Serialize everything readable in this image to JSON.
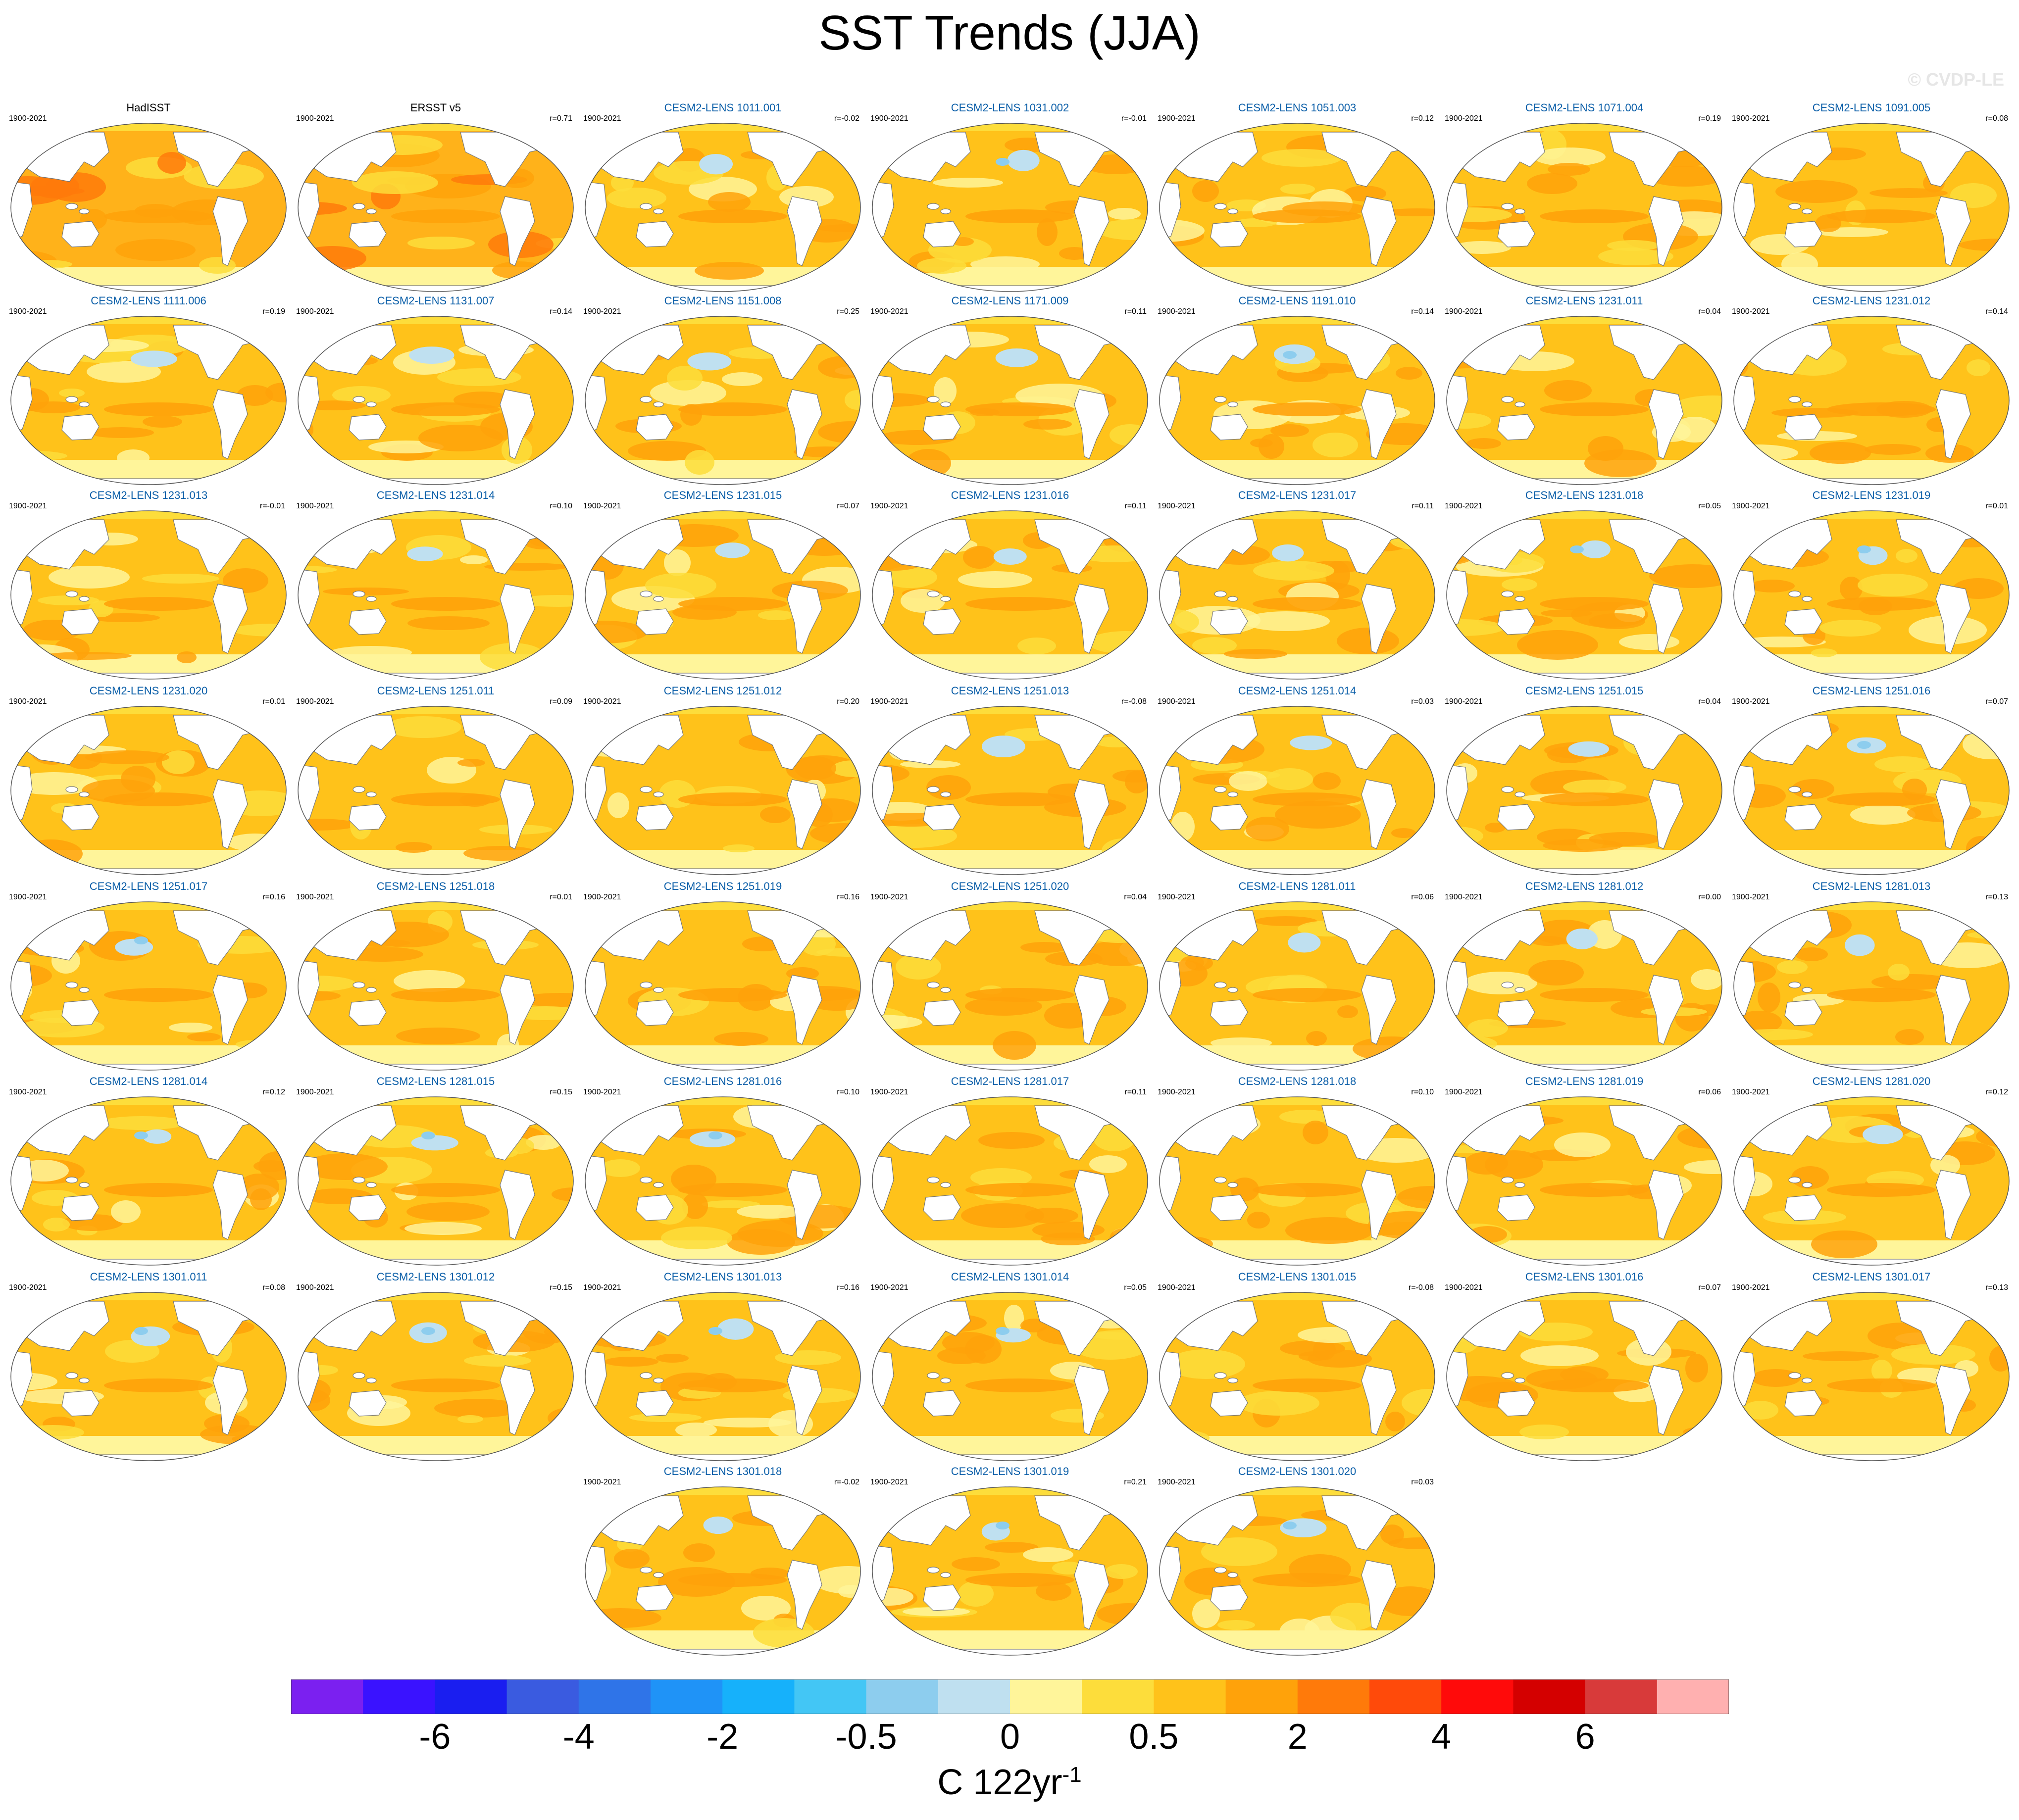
{
  "title": "SST Trends (JJA)",
  "watermark": "© CVDP-LE",
  "period": "1900-2021",
  "panels": [
    {
      "name": "HadISST",
      "r": "",
      "obs": true
    },
    {
      "name": "ERSST v5",
      "r": "r=0.71",
      "obs": true
    },
    {
      "name": "CESM2-LENS 1011.001",
      "r": "r=-0.02"
    },
    {
      "name": "CESM2-LENS 1031.002",
      "r": "r=-0.01"
    },
    {
      "name": "CESM2-LENS 1051.003",
      "r": "r=0.12"
    },
    {
      "name": "CESM2-LENS 1071.004",
      "r": "r=0.19"
    },
    {
      "name": "CESM2-LENS 1091.005",
      "r": "r=0.08"
    },
    {
      "name": "CESM2-LENS 1111.006",
      "r": "r=0.19"
    },
    {
      "name": "CESM2-LENS 1131.007",
      "r": "r=0.14"
    },
    {
      "name": "CESM2-LENS 1151.008",
      "r": "r=0.25"
    },
    {
      "name": "CESM2-LENS 1171.009",
      "r": "r=0.11"
    },
    {
      "name": "CESM2-LENS 1191.010",
      "r": "r=0.14"
    },
    {
      "name": "CESM2-LENS 1231.011",
      "r": "r=0.04"
    },
    {
      "name": "CESM2-LENS 1231.012",
      "r": "r=0.14"
    },
    {
      "name": "CESM2-LENS 1231.013",
      "r": "r=-0.01"
    },
    {
      "name": "CESM2-LENS 1231.014",
      "r": "r=0.10"
    },
    {
      "name": "CESM2-LENS 1231.015",
      "r": "r=0.07"
    },
    {
      "name": "CESM2-LENS 1231.016",
      "r": "r=0.11"
    },
    {
      "name": "CESM2-LENS 1231.017",
      "r": "r=0.11"
    },
    {
      "name": "CESM2-LENS 1231.018",
      "r": "r=0.05"
    },
    {
      "name": "CESM2-LENS 1231.019",
      "r": "r=0.01"
    },
    {
      "name": "CESM2-LENS 1231.020",
      "r": "r=0.01"
    },
    {
      "name": "CESM2-LENS 1251.011",
      "r": "r=0.09"
    },
    {
      "name": "CESM2-LENS 1251.012",
      "r": "r=0.20"
    },
    {
      "name": "CESM2-LENS 1251.013",
      "r": "r=-0.08"
    },
    {
      "name": "CESM2-LENS 1251.014",
      "r": "r=0.03"
    },
    {
      "name": "CESM2-LENS 1251.015",
      "r": "r=0.04"
    },
    {
      "name": "CESM2-LENS 1251.016",
      "r": "r=0.07"
    },
    {
      "name": "CESM2-LENS 1251.017",
      "r": "r=0.16"
    },
    {
      "name": "CESM2-LENS 1251.018",
      "r": "r=0.01"
    },
    {
      "name": "CESM2-LENS 1251.019",
      "r": "r=0.16"
    },
    {
      "name": "CESM2-LENS 1251.020",
      "r": "r=0.04"
    },
    {
      "name": "CESM2-LENS 1281.011",
      "r": "r=0.06"
    },
    {
      "name": "CESM2-LENS 1281.012",
      "r": "r=0.00"
    },
    {
      "name": "CESM2-LENS 1281.013",
      "r": "r=0.13"
    },
    {
      "name": "CESM2-LENS 1281.014",
      "r": "r=0.12"
    },
    {
      "name": "CESM2-LENS 1281.015",
      "r": "r=0.15"
    },
    {
      "name": "CESM2-LENS 1281.016",
      "r": "r=0.10"
    },
    {
      "name": "CESM2-LENS 1281.017",
      "r": "r=0.11"
    },
    {
      "name": "CESM2-LENS 1281.018",
      "r": "r=0.10"
    },
    {
      "name": "CESM2-LENS 1281.019",
      "r": "r=0.06"
    },
    {
      "name": "CESM2-LENS 1281.020",
      "r": "r=0.12"
    },
    {
      "name": "CESM2-LENS 1301.011",
      "r": "r=0.08"
    },
    {
      "name": "CESM2-LENS 1301.012",
      "r": "r=0.15"
    },
    {
      "name": "CESM2-LENS 1301.013",
      "r": "r=0.16"
    },
    {
      "name": "CESM2-LENS 1301.014",
      "r": "r=0.05"
    },
    {
      "name": "CESM2-LENS 1301.015",
      "r": "r=-0.08"
    },
    {
      "name": "CESM2-LENS 1301.016",
      "r": "r=0.07"
    },
    {
      "name": "CESM2-LENS 1301.017",
      "r": "r=0.13"
    },
    {
      "name": "CESM2-LENS 1301.018",
      "r": "r=-0.02"
    },
    {
      "name": "CESM2-LENS 1301.019",
      "r": "r=0.21"
    },
    {
      "name": "CESM2-LENS 1301.020",
      "r": "r=0.03"
    }
  ],
  "colorbar": {
    "colors": [
      "#7b20f0",
      "#3a12ff",
      "#1a1ef0",
      "#3a5be0",
      "#2f74e8",
      "#1f93f7",
      "#16b1fb",
      "#43c6f5",
      "#8dcdee",
      "#bfe0f0",
      "#fff59a",
      "#fddd3b",
      "#ffc21a",
      "#ffa20a",
      "#ff7a0a",
      "#ff4a0a",
      "#ff0a0a",
      "#d40000",
      "#d83a3a",
      "#ffb0b0"
    ],
    "tick_labels": [
      "-6",
      "-4",
      "-2",
      "-0.5",
      "0",
      "0.5",
      "2",
      "4",
      "6"
    ],
    "units": "C 122yr",
    "units_exp": "-1"
  }
}
